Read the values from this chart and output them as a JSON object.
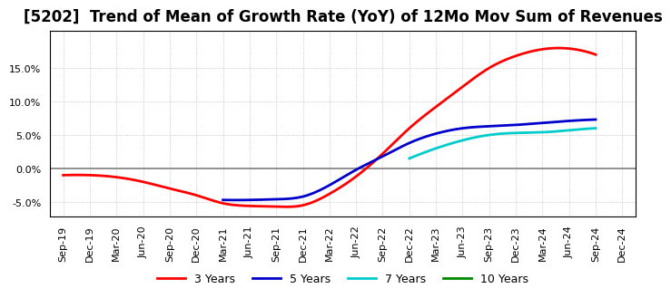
{
  "title": "[5202]  Trend of Mean of Growth Rate (YoY) of 12Mo Mov Sum of Revenues",
  "x_labels": [
    "Sep-19",
    "Dec-19",
    "Mar-20",
    "Jun-20",
    "Sep-20",
    "Dec-20",
    "Mar-21",
    "Jun-21",
    "Sep-21",
    "Dec-21",
    "Mar-22",
    "Jun-22",
    "Sep-22",
    "Dec-22",
    "Mar-23",
    "Jun-23",
    "Sep-23",
    "Dec-23",
    "Mar-24",
    "Jun-24",
    "Sep-24",
    "Dec-24"
  ],
  "ylim": [
    -0.072,
    0.205
  ],
  "yticks": [
    -0.05,
    0.0,
    0.05,
    0.1,
    0.15
  ],
  "series": {
    "3 Years": {
      "color": "#FF0000",
      "indices": [
        0,
        1,
        2,
        3,
        4,
        5,
        6,
        7,
        8,
        9,
        10,
        11,
        12,
        13,
        14,
        15,
        16,
        17,
        18,
        19,
        20
      ],
      "values": [
        -0.01,
        -0.01,
        -0.013,
        -0.02,
        -0.03,
        -0.04,
        -0.052,
        -0.056,
        -0.057,
        -0.055,
        -0.038,
        -0.012,
        0.022,
        0.06,
        0.092,
        0.122,
        0.15,
        0.168,
        0.178,
        0.179,
        0.17
      ]
    },
    "5 Years": {
      "color": "#0000CC",
      "indices": [
        6,
        7,
        8,
        9,
        10,
        11,
        12,
        13,
        14,
        15,
        16,
        17,
        18,
        19,
        20
      ],
      "values": [
        -0.047,
        -0.047,
        -0.046,
        -0.042,
        -0.025,
        -0.002,
        0.018,
        0.038,
        0.052,
        0.06,
        0.063,
        0.065,
        0.068,
        0.071,
        0.073
      ]
    },
    "7 Years": {
      "color": "#00CCCC",
      "indices": [
        13,
        14,
        15,
        16,
        17,
        18,
        19,
        20
      ],
      "values": [
        0.015,
        0.03,
        0.042,
        0.05,
        0.053,
        0.054,
        0.057,
        0.06
      ]
    },
    "10 Years": {
      "color": "#008800",
      "indices": [],
      "values": []
    }
  },
  "background_color": "#FFFFFF",
  "plot_bg_color": "#FFFFFF",
  "grid_color": "#AAAAAA",
  "zero_line_color": "#808080",
  "title_fontsize": 12,
  "legend_fontsize": 9,
  "tick_fontsize": 8
}
